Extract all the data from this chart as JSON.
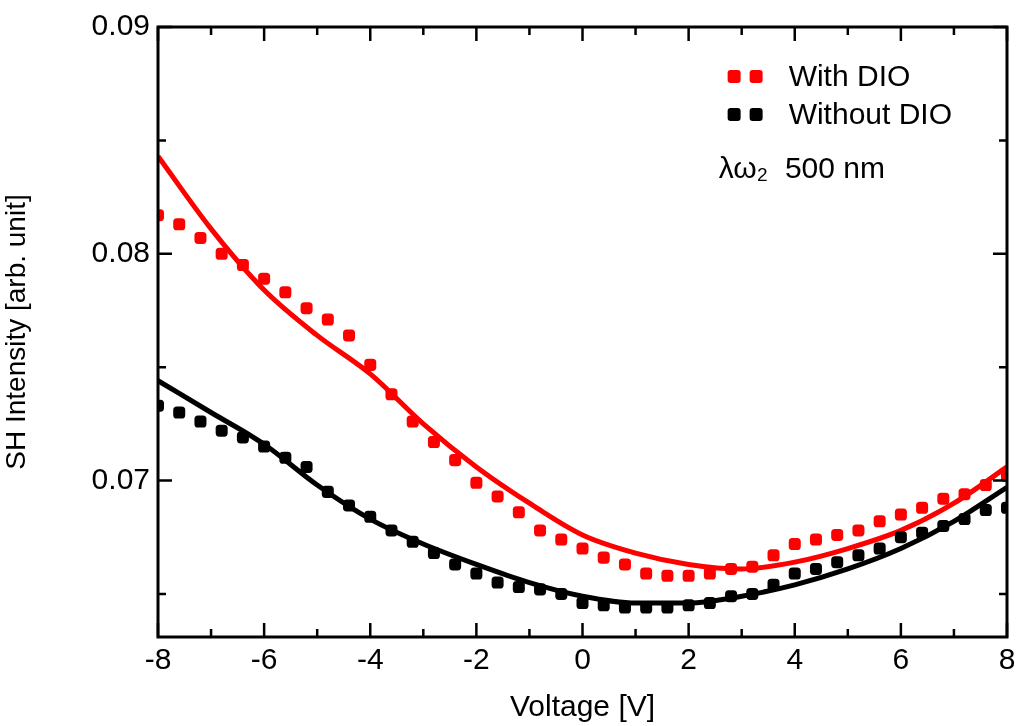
{
  "chart_data": {
    "type": "scatter",
    "xlabel": "Voltage [V]",
    "ylabel": "SH Intensity [arb. unit]",
    "xlim": [
      -8,
      8
    ],
    "xticks": [
      -8,
      {
        "value": -7,
        "label": null
      },
      -6,
      {
        "value": -5,
        "label": null
      },
      -4,
      {
        "value": -3,
        "label": null
      },
      -2,
      {
        "value": -1,
        "label": null
      },
      0,
      {
        "value": 1,
        "label": null
      },
      2,
      {
        "value": 3,
        "label": null
      },
      4,
      {
        "value": 5,
        "label": null
      },
      6,
      {
        "value": 7,
        "label": null
      },
      8
    ],
    "ylim": [
      0.0631,
      0.09
    ],
    "yticks": [
      {
        "value": 0.065,
        "label": null
      },
      0.07,
      {
        "value": 0.075,
        "label": null
      },
      0.08,
      {
        "value": 0.085,
        "label": null
      },
      0.09
    ],
    "grid": false,
    "legend": "top right",
    "annotations": [
      "λω₂  500 nm"
    ],
    "x": [
      -8,
      -7.6,
      -7.2,
      -6.8,
      -6.4,
      -6,
      -5.6,
      -5.2,
      -4.8,
      -4.4,
      -4,
      -3.6,
      -3.2,
      -2.8,
      -2.4,
      -2,
      -1.6,
      -1.2,
      -0.8,
      -0.4,
      0,
      0.4,
      0.8,
      1.2,
      1.6,
      2,
      2.4,
      2.8,
      3.2,
      3.6,
      4,
      4.4,
      4.8,
      5.2,
      5.6,
      6,
      6.4,
      6.8,
      7.2,
      7.6,
      8
    ],
    "series": [
      {
        "name": "With DIO",
        "color": "#ff0000",
        "marker": "square",
        "values": [
          0.0817,
          0.0813,
          0.0807,
          0.08,
          0.0795,
          0.0789,
          0.0783,
          0.0776,
          0.0771,
          0.0764,
          0.0751,
          0.0738,
          0.0726,
          0.0717,
          0.0709,
          0.0699,
          0.0693,
          0.0686,
          0.0678,
          0.0674,
          0.067,
          0.0666,
          0.0663,
          0.0659,
          0.0658,
          0.0658,
          0.0659,
          0.0661,
          0.0662,
          0.0667,
          0.0672,
          0.0674,
          0.0676,
          0.0678,
          0.0682,
          0.0685,
          0.0688,
          0.0692,
          0.0694,
          0.0698,
          0.0702
        ]
      },
      {
        "name": "Without DIO",
        "color": "#000000",
        "marker": "square",
        "values": [
          0.0733,
          0.073,
          0.0726,
          0.0722,
          0.0719,
          0.0715,
          0.071,
          0.0706,
          0.0695,
          0.0689,
          0.0684,
          0.0678,
          0.0673,
          0.0668,
          0.0663,
          0.0659,
          0.0655,
          0.0653,
          0.0652,
          0.065,
          0.0646,
          0.0645,
          0.0644,
          0.0644,
          0.0644,
          0.0645,
          0.0646,
          0.0649,
          0.065,
          0.0654,
          0.0659,
          0.0661,
          0.0664,
          0.0667,
          0.067,
          0.0675,
          0.0677,
          0.068,
          0.0683,
          0.0687,
          0.0688
        ]
      },
      {
        "type": "line",
        "color": "#ff0000",
        "marker": "none",
        "x": [
          -8,
          -7,
          -6,
          -5,
          -4,
          -3,
          -2,
          -1,
          0,
          1,
          2,
          3,
          4,
          5,
          6,
          7,
          8
        ],
        "values": [
          0.0843,
          0.0811,
          0.0784,
          0.0764,
          0.0747,
          0.0725,
          0.0706,
          0.069,
          0.0676,
          0.0668,
          0.0663,
          0.0661,
          0.0664,
          0.067,
          0.0678,
          0.069,
          0.0706
        ]
      },
      {
        "type": "line",
        "color": "#000000",
        "marker": "none",
        "x": [
          -8,
          -7,
          -6,
          -5,
          -4,
          -3,
          -2,
          -1,
          0,
          1,
          2,
          3,
          4,
          5,
          6,
          7,
          8
        ],
        "values": [
          0.0744,
          0.073,
          0.0716,
          0.0698,
          0.0683,
          0.0672,
          0.0663,
          0.0655,
          0.0649,
          0.0646,
          0.0646,
          0.0649,
          0.0654,
          0.0661,
          0.067,
          0.0682,
          0.0697
        ]
      }
    ]
  }
}
